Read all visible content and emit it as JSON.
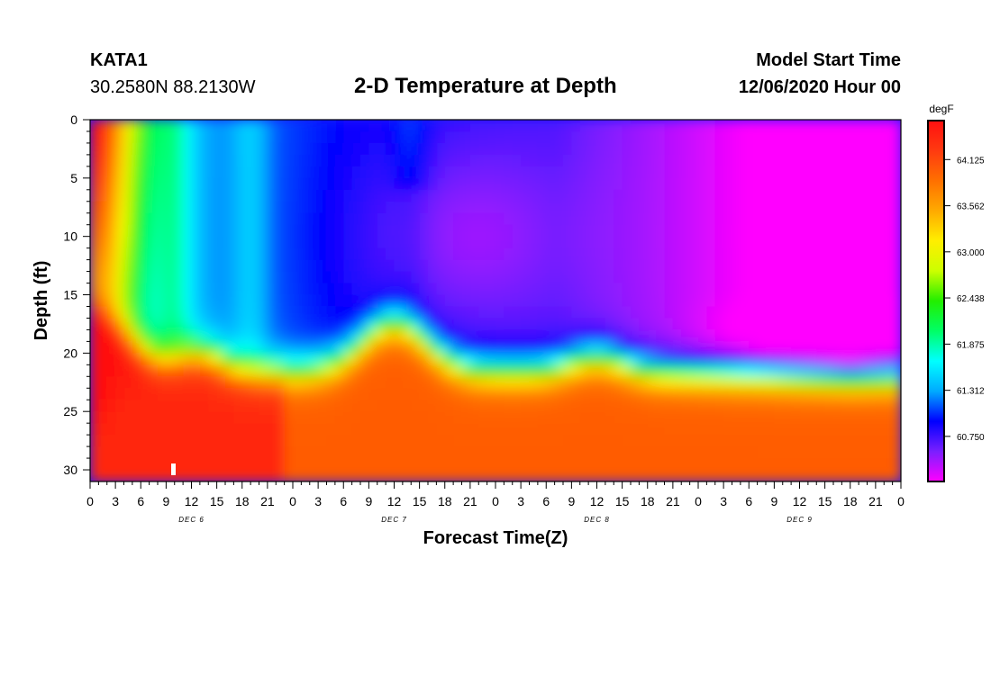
{
  "header": {
    "station_id": "KATA1",
    "coordinates": "30.2580N 88.2130W",
    "title": "2-D Temperature at Depth",
    "model_start_label": "Model Start Time",
    "model_start_value": "12/06/2020 Hour 00"
  },
  "chart_data": {
    "type": "heatmap",
    "title": "2-D Temperature at Depth",
    "xlabel": "Forecast Time(Z)",
    "ylabel": "Depth (ft)",
    "x_tick_labels": [
      "0",
      "3",
      "6",
      "9",
      "12",
      "15",
      "18",
      "21",
      "0",
      "3",
      "6",
      "9",
      "12",
      "15",
      "18",
      "21",
      "0",
      "3",
      "6",
      "9",
      "12",
      "15",
      "18",
      "21",
      "0",
      "3",
      "6",
      "9",
      "12",
      "15",
      "18",
      "21",
      "0"
    ],
    "day_labels": [
      "DEC 6",
      "DEC 7",
      "DEC 8",
      "DEC 9"
    ],
    "xlim": [
      0,
      96
    ],
    "x_unit": "hours since 12/06/2020 00Z",
    "y_ticks": [
      0,
      5,
      10,
      15,
      20,
      25,
      30
    ],
    "ylim": [
      0,
      31
    ],
    "y_inverted": true,
    "value_unit": "degF",
    "colorbar": {
      "label": "degF",
      "tick_labels": [
        "64.125",
        "63.562",
        "63.000",
        "62.438",
        "61.875",
        "61.312",
        "60.750"
      ],
      "range": [
        60.2,
        64.6
      ],
      "colors": [
        "#ff00ff",
        "#7a1fff",
        "#0000ff",
        "#00aaff",
        "#00ffff",
        "#00ff66",
        "#22ee00",
        "#ccff00",
        "#ffee00",
        "#ffaa00",
        "#ff7000",
        "#ff3a10",
        "#ff1010"
      ]
    },
    "grid": false
  }
}
